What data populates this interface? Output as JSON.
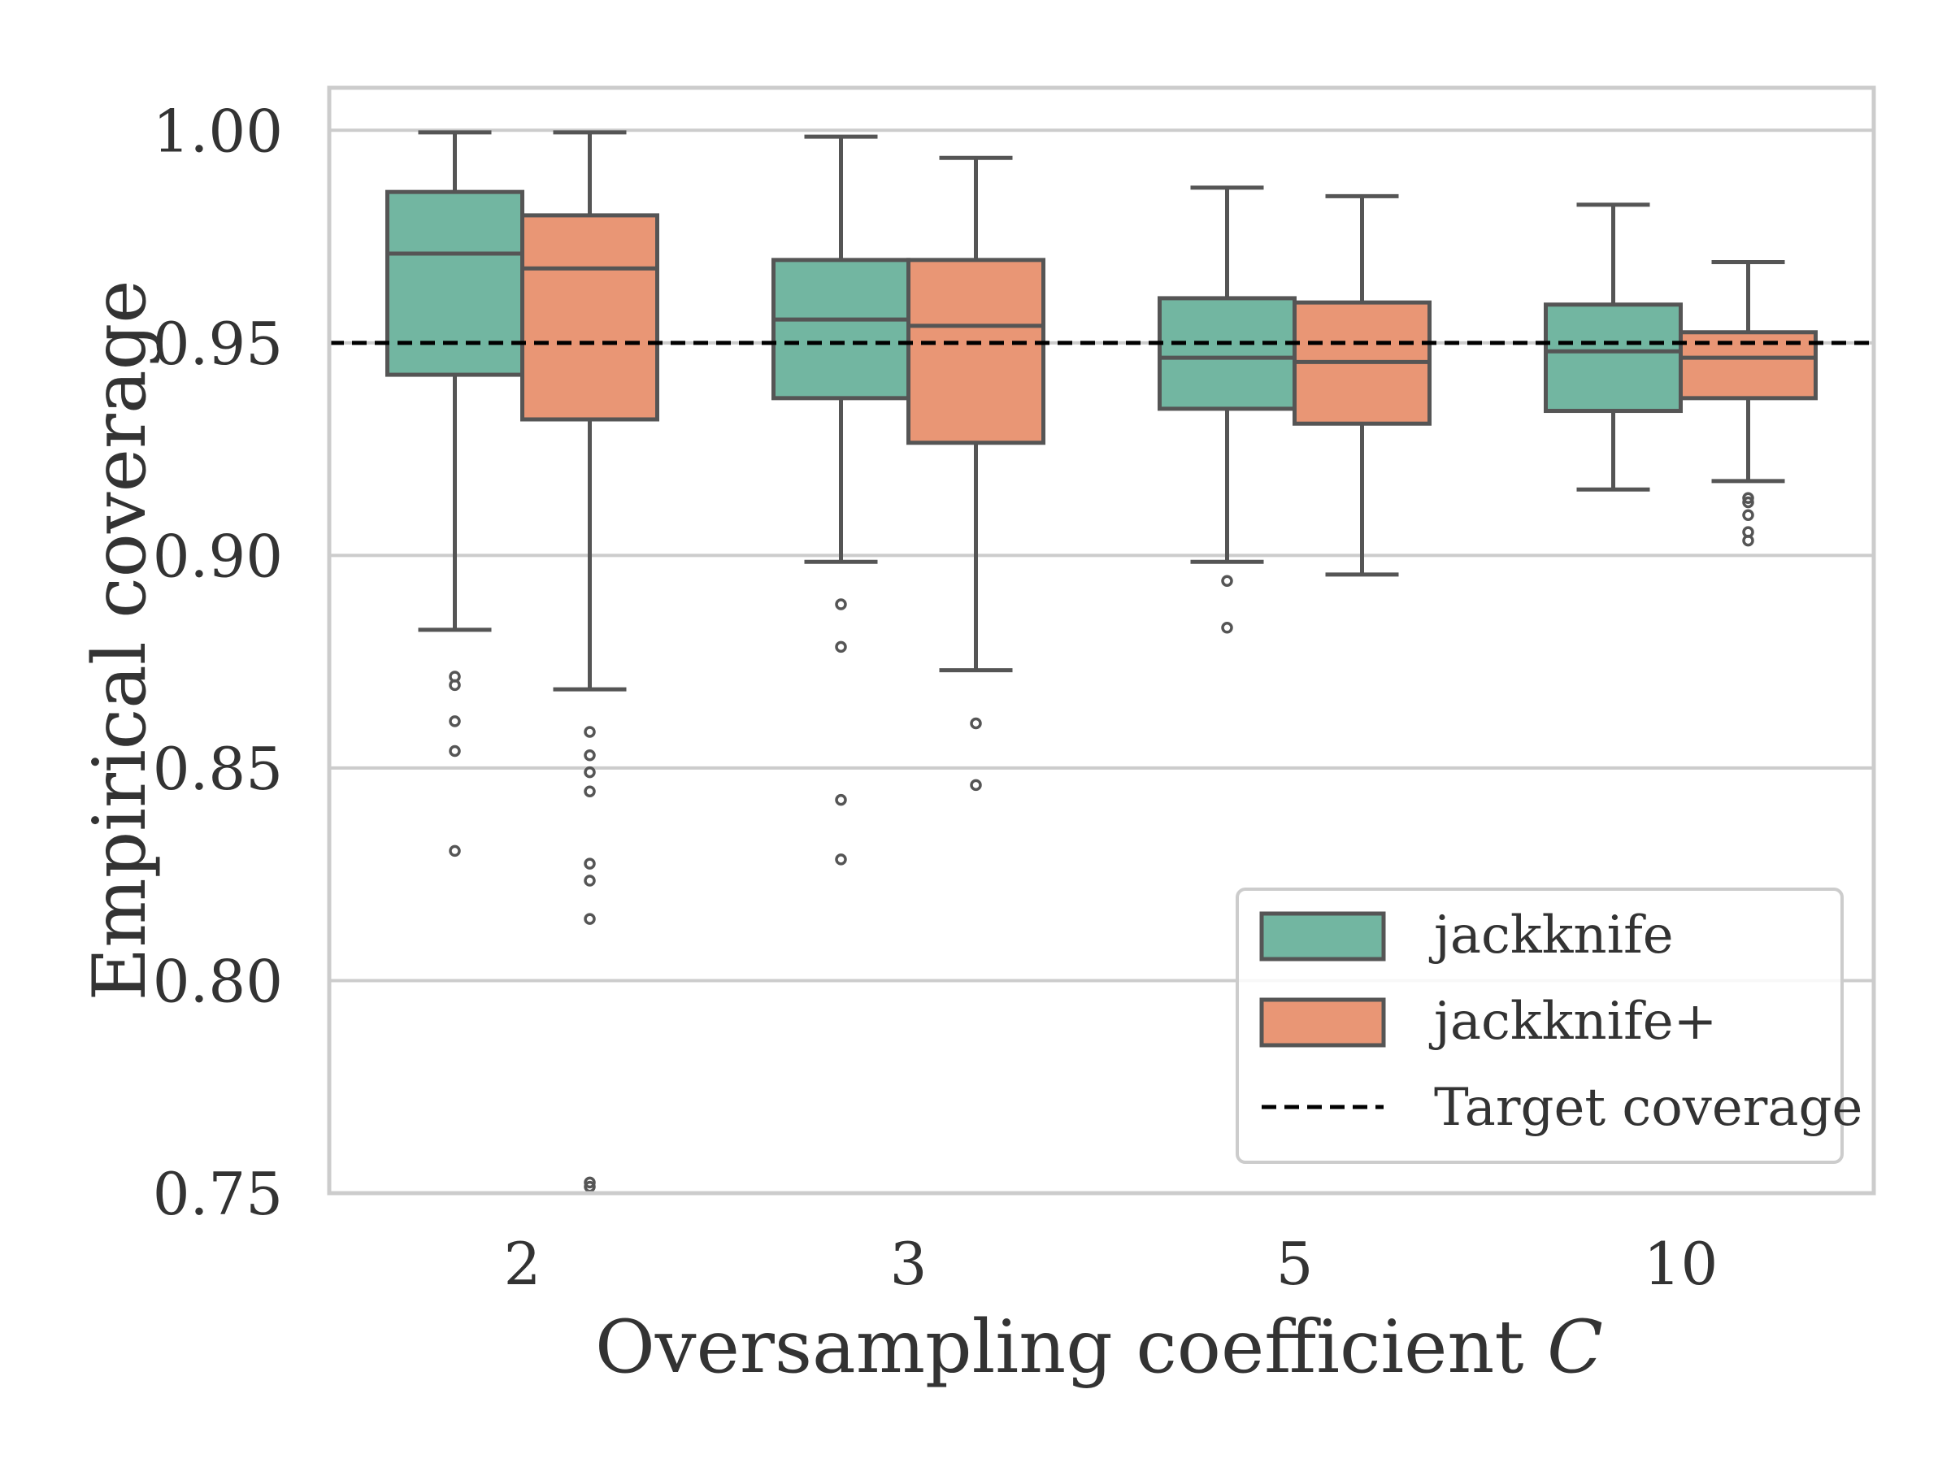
{
  "chart_data": {
    "type": "box",
    "title": "",
    "xlabel": "Oversampling coefficient",
    "xlabel_var": "C",
    "ylabel": "Empirical coverage",
    "ylim": [
      0.75,
      1.01
    ],
    "yticks": [
      "0.75",
      "0.80",
      "0.85",
      "0.90",
      "0.95",
      "1.00"
    ],
    "ytick_values": [
      0.75,
      0.8,
      0.85,
      0.9,
      0.95,
      1.0
    ],
    "categories": [
      "2",
      "3",
      "5",
      "10"
    ],
    "grid": "horizontal",
    "legend_position": "bottom-right",
    "reference_line": {
      "label": "Target coverage",
      "value": 0.95,
      "color": "#000000",
      "style": "dashed"
    },
    "series": [
      {
        "name": "jackknife",
        "color": "#72b6a1",
        "boxes": [
          {
            "whisker_low": 0.8825,
            "q1": 0.9425,
            "median": 0.971,
            "q3": 0.9855,
            "whisker_high": 0.9995,
            "outliers": [
              0.8715,
              0.8695,
              0.861,
              0.854,
              0.8305
            ]
          },
          {
            "whisker_low": 0.8985,
            "q1": 0.937,
            "median": 0.9555,
            "q3": 0.9695,
            "whisker_high": 0.9985,
            "outliers": [
              0.8885,
              0.8785,
              0.8425,
              0.8285
            ]
          },
          {
            "whisker_low": 0.8985,
            "q1": 0.9345,
            "median": 0.9465,
            "q3": 0.9605,
            "whisker_high": 0.9865,
            "outliers": [
              0.894,
              0.883
            ]
          },
          {
            "whisker_low": 0.9155,
            "q1": 0.934,
            "median": 0.948,
            "q3": 0.959,
            "whisker_high": 0.9825,
            "outliers": []
          }
        ]
      },
      {
        "name": "jackknife+",
        "color": "#e99675",
        "boxes": [
          {
            "whisker_low": 0.8685,
            "q1": 0.932,
            "median": 0.9675,
            "q3": 0.98,
            "whisker_high": 0.9995,
            "outliers": [
              0.8585,
              0.853,
              0.849,
              0.8445,
              0.8275,
              0.8235,
              0.8145,
              0.7525,
              0.7515
            ]
          },
          {
            "whisker_low": 0.873,
            "q1": 0.9265,
            "median": 0.954,
            "q3": 0.9695,
            "whisker_high": 0.9935,
            "outliers": [
              0.8605,
              0.846
            ]
          },
          {
            "whisker_low": 0.8955,
            "q1": 0.931,
            "median": 0.9455,
            "q3": 0.9595,
            "whisker_high": 0.9845,
            "outliers": []
          },
          {
            "whisker_low": 0.9175,
            "q1": 0.937,
            "median": 0.9465,
            "q3": 0.9525,
            "whisker_high": 0.969,
            "outliers": [
              0.9135,
              0.9125,
              0.9095,
              0.9055,
              0.9035
            ]
          }
        ]
      }
    ]
  }
}
